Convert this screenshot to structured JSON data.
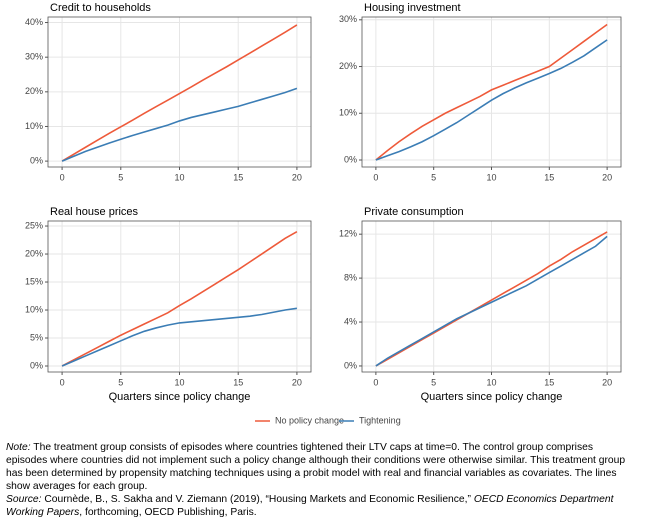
{
  "chart_data": [
    {
      "type": "line",
      "title": "Credit to households",
      "x": [
        0,
        1,
        2,
        3,
        4,
        5,
        6,
        7,
        8,
        9,
        10,
        11,
        12,
        13,
        14,
        15,
        16,
        17,
        18,
        19,
        20
      ],
      "xlim": [
        -1.2,
        21.2
      ],
      "xticks": [
        0,
        5,
        10,
        15,
        20
      ],
      "ylim": [
        -1.7,
        41.6
      ],
      "yticks": [
        {
          "value": 0,
          "label": "0%"
        },
        {
          "value": 10,
          "label": "10%"
        },
        {
          "value": 20,
          "label": "20%"
        },
        {
          "value": 30,
          "label": "30%"
        },
        {
          "value": 40,
          "label": "40%"
        }
      ],
      "grid": true,
      "series": [
        {
          "name": "No policy change",
          "color": "#ee5a3a",
          "values": [
            0,
            2,
            4,
            6,
            8,
            9.9,
            11.8,
            13.8,
            15.7,
            17.6,
            19.5,
            21.4,
            23.4,
            25.3,
            27.2,
            29.2,
            31.2,
            33.2,
            35.2,
            37.2,
            39.3
          ]
        },
        {
          "name": "Tightening",
          "color": "#3b7db5",
          "values": [
            0,
            1.4,
            2.8,
            4,
            5.2,
            6.3,
            7.4,
            8.4,
            9.4,
            10.4,
            11.6,
            12.6,
            13.4,
            14.2,
            15,
            15.8,
            16.8,
            17.8,
            18.8,
            19.8,
            21
          ]
        }
      ]
    },
    {
      "type": "line",
      "title": "Housing investment",
      "x": [
        0,
        1,
        2,
        3,
        4,
        5,
        6,
        7,
        8,
        9,
        10,
        11,
        12,
        13,
        14,
        15,
        16,
        17,
        18,
        19,
        20
      ],
      "xlim": [
        -1.2,
        21.2
      ],
      "xticks": [
        0,
        5,
        10,
        15,
        20
      ],
      "ylim": [
        -1.5,
        30.6
      ],
      "yticks": [
        {
          "value": 0,
          "label": "0%"
        },
        {
          "value": 10,
          "label": "10%"
        },
        {
          "value": 20,
          "label": "20%"
        },
        {
          "value": 30,
          "label": "30%"
        }
      ],
      "grid": true,
      "series": [
        {
          "name": "No policy change",
          "color": "#ee5a3a",
          "values": [
            0,
            2,
            3.9,
            5.6,
            7.2,
            8.6,
            10,
            11.2,
            12.4,
            13.6,
            15,
            16,
            17,
            18,
            19,
            20,
            21.8,
            23.6,
            25.4,
            27.2,
            29
          ]
        },
        {
          "name": "Tightening",
          "color": "#3b7db5",
          "values": [
            0,
            0.9,
            1.8,
            2.8,
            3.9,
            5.2,
            6.6,
            8,
            9.6,
            11.2,
            12.8,
            14.2,
            15.4,
            16.5,
            17.5,
            18.5,
            19.6,
            20.9,
            22.3,
            24,
            25.7
          ]
        }
      ]
    },
    {
      "type": "line",
      "title": "Real house prices",
      "x": [
        0,
        1,
        2,
        3,
        4,
        5,
        6,
        7,
        8,
        9,
        10,
        11,
        12,
        13,
        14,
        15,
        16,
        17,
        18,
        19,
        20
      ],
      "xlim": [
        -1.2,
        21.2
      ],
      "xticks": [
        0,
        5,
        10,
        15,
        20
      ],
      "xlabel": "Quarters since policy change",
      "ylim": [
        -1.07,
        25.9
      ],
      "yticks": [
        {
          "value": 0,
          "label": "0%"
        },
        {
          "value": 5,
          "label": "5%"
        },
        {
          "value": 10,
          "label": "10%"
        },
        {
          "value": 15,
          "label": "15%"
        },
        {
          "value": 20,
          "label": "20%"
        },
        {
          "value": 25,
          "label": "25%"
        }
      ],
      "grid": true,
      "series": [
        {
          "name": "No policy change",
          "color": "#ee5a3a",
          "values": [
            0,
            1.1,
            2.2,
            3.3,
            4.4,
            5.5,
            6.5,
            7.5,
            8.5,
            9.5,
            10.8,
            12,
            13.3,
            14.6,
            15.9,
            17.2,
            18.6,
            20,
            21.4,
            22.8,
            24
          ]
        },
        {
          "name": "Tightening",
          "color": "#3b7db5",
          "values": [
            0,
            0.9,
            1.8,
            2.7,
            3.6,
            4.5,
            5.4,
            6.2,
            6.8,
            7.3,
            7.7,
            7.9,
            8.1,
            8.3,
            8.5,
            8.7,
            8.9,
            9.2,
            9.6,
            10,
            10.3
          ]
        }
      ]
    },
    {
      "type": "line",
      "title": "Private consumption",
      "x": [
        0,
        1,
        2,
        3,
        4,
        5,
        6,
        7,
        8,
        9,
        10,
        11,
        12,
        13,
        14,
        15,
        16,
        17,
        18,
        19,
        20
      ],
      "xlim": [
        -1.2,
        21.2
      ],
      "xticks": [
        0,
        5,
        10,
        15,
        20
      ],
      "xlabel": "Quarters since policy change",
      "ylim": [
        -0.55,
        13.2
      ],
      "yticks": [
        {
          "value": 0,
          "label": "0%"
        },
        {
          "value": 4,
          "label": "4%"
        },
        {
          "value": 8,
          "label": "8%"
        },
        {
          "value": 12,
          "label": "12%"
        }
      ],
      "grid": true,
      "series": [
        {
          "name": "No policy change",
          "color": "#ee5a3a",
          "values": [
            0,
            0.6,
            1.2,
            1.8,
            2.4,
            3,
            3.6,
            4.2,
            4.8,
            5.4,
            6,
            6.6,
            7.2,
            7.8,
            8.4,
            9.1,
            9.7,
            10.4,
            11,
            11.6,
            12.2
          ]
        },
        {
          "name": "Tightening",
          "color": "#3b7db5",
          "values": [
            0,
            0.7,
            1.3,
            1.9,
            2.5,
            3.1,
            3.7,
            4.3,
            4.8,
            5.3,
            5.8,
            6.3,
            6.8,
            7.3,
            7.9,
            8.5,
            9.1,
            9.7,
            10.3,
            10.9,
            11.8
          ]
        }
      ]
    }
  ],
  "note": {
    "label": "Note:",
    "text": " The treatment group consists of episodes where countries tightened their LTV caps at time=0. The control group comprises episodes where countries did not implement such a policy change although their conditions were otherwise similar. This treatment group has been determined by propensity matching techniques using a probit model with real and financial variables as covariates. The lines show averages for each group."
  },
  "source": {
    "label": "Source:",
    "text": " Cournède, B., S. Sakha and V. Ziemann (2019), “Housing Markets and Economic Resilience,” ",
    "publication": "OECD Economics Department Working Papers",
    "rest": ", forthcoming, OECD Publishing, Paris."
  }
}
